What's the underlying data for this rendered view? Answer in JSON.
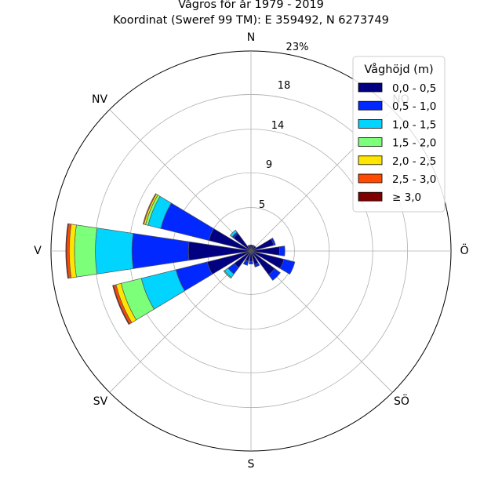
{
  "title_line1": "Vågros för år 1979 - 2019",
  "title_line2": "Koordinat (Sweref 99 TM): E 359492, N 6273749",
  "chart_data": {
    "type": "windrose",
    "directions": [
      "N",
      "NO",
      "Ö",
      "SÖ",
      "S",
      "SV",
      "V",
      "NV"
    ],
    "direction_labels": [
      {
        "label": "N",
        "angle": 0
      },
      {
        "label": "NO",
        "angle": 45
      },
      {
        "label": "Ö",
        "angle": 90
      },
      {
        "label": "SÖ",
        "angle": 135
      },
      {
        "label": "S",
        "angle": 180
      },
      {
        "label": "SV",
        "angle": 225
      },
      {
        "label": "V",
        "angle": 270
      },
      {
        "label": "NV",
        "angle": 315
      }
    ],
    "rings": [
      5,
      9,
      14,
      18
    ],
    "rmax": 23,
    "rmax_label": "23%",
    "legend_title": "Våghöjd (m)",
    "bins": [
      {
        "label": "0,0 - 0,5",
        "color": "#000080"
      },
      {
        "label": "0,5 - 1,0",
        "color": "#0028ff"
      },
      {
        "label": "1,0 - 1,5",
        "color": "#00d4ff"
      },
      {
        "label": "1,5 - 2,0",
        "color": "#7cff79"
      },
      {
        "label": "2,0 - 2,5",
        "color": "#ffe500"
      },
      {
        "label": "2,5 - 3,0",
        "color": "#ff4a00"
      },
      {
        "label": "≥ 3,0",
        "color": "#800000"
      }
    ],
    "sectors": [
      {
        "angle": 0,
        "values": [
          0.7,
          0
        ]
      },
      {
        "angle": 22.5,
        "values": [
          0.7,
          0
        ]
      },
      {
        "angle": 45,
        "values": [
          0.7,
          0
        ]
      },
      {
        "angle": 67.5,
        "values": [
          2.7,
          0.2
        ]
      },
      {
        "angle": 90,
        "values": [
          3.3,
          0.6
        ]
      },
      {
        "angle": 112.5,
        "values": [
          3.9,
          1.3
        ]
      },
      {
        "angle": 135,
        "values": [
          3.4,
          0.8
        ]
      },
      {
        "angle": 157.5,
        "values": [
          1.6,
          0.3
        ]
      },
      {
        "angle": 180,
        "values": [
          1.2,
          0.3
        ]
      },
      {
        "angle": 202.5,
        "values": [
          1.2,
          0.5
        ]
      },
      {
        "angle": 225,
        "values": [
          2.4,
          0.9,
          0.5,
          0.1
        ]
      },
      {
        "angle": 247.5,
        "values": [
          5.2,
          3.7,
          4.1,
          2.4,
          0.6,
          0.3,
          0.1
        ]
      },
      {
        "angle": 270,
        "values": [
          7.2,
          6.5,
          4.2,
          2.4,
          0.6,
          0.3,
          0.1
        ]
      },
      {
        "angle": 292.5,
        "values": [
          5.0,
          5.7,
          1.5,
          0.3,
          0.2,
          0.1
        ]
      },
      {
        "angle": 315,
        "values": [
          2.5,
          0.2,
          0.3
        ]
      },
      {
        "angle": 337.5,
        "values": [
          0.7,
          0
        ]
      }
    ]
  }
}
